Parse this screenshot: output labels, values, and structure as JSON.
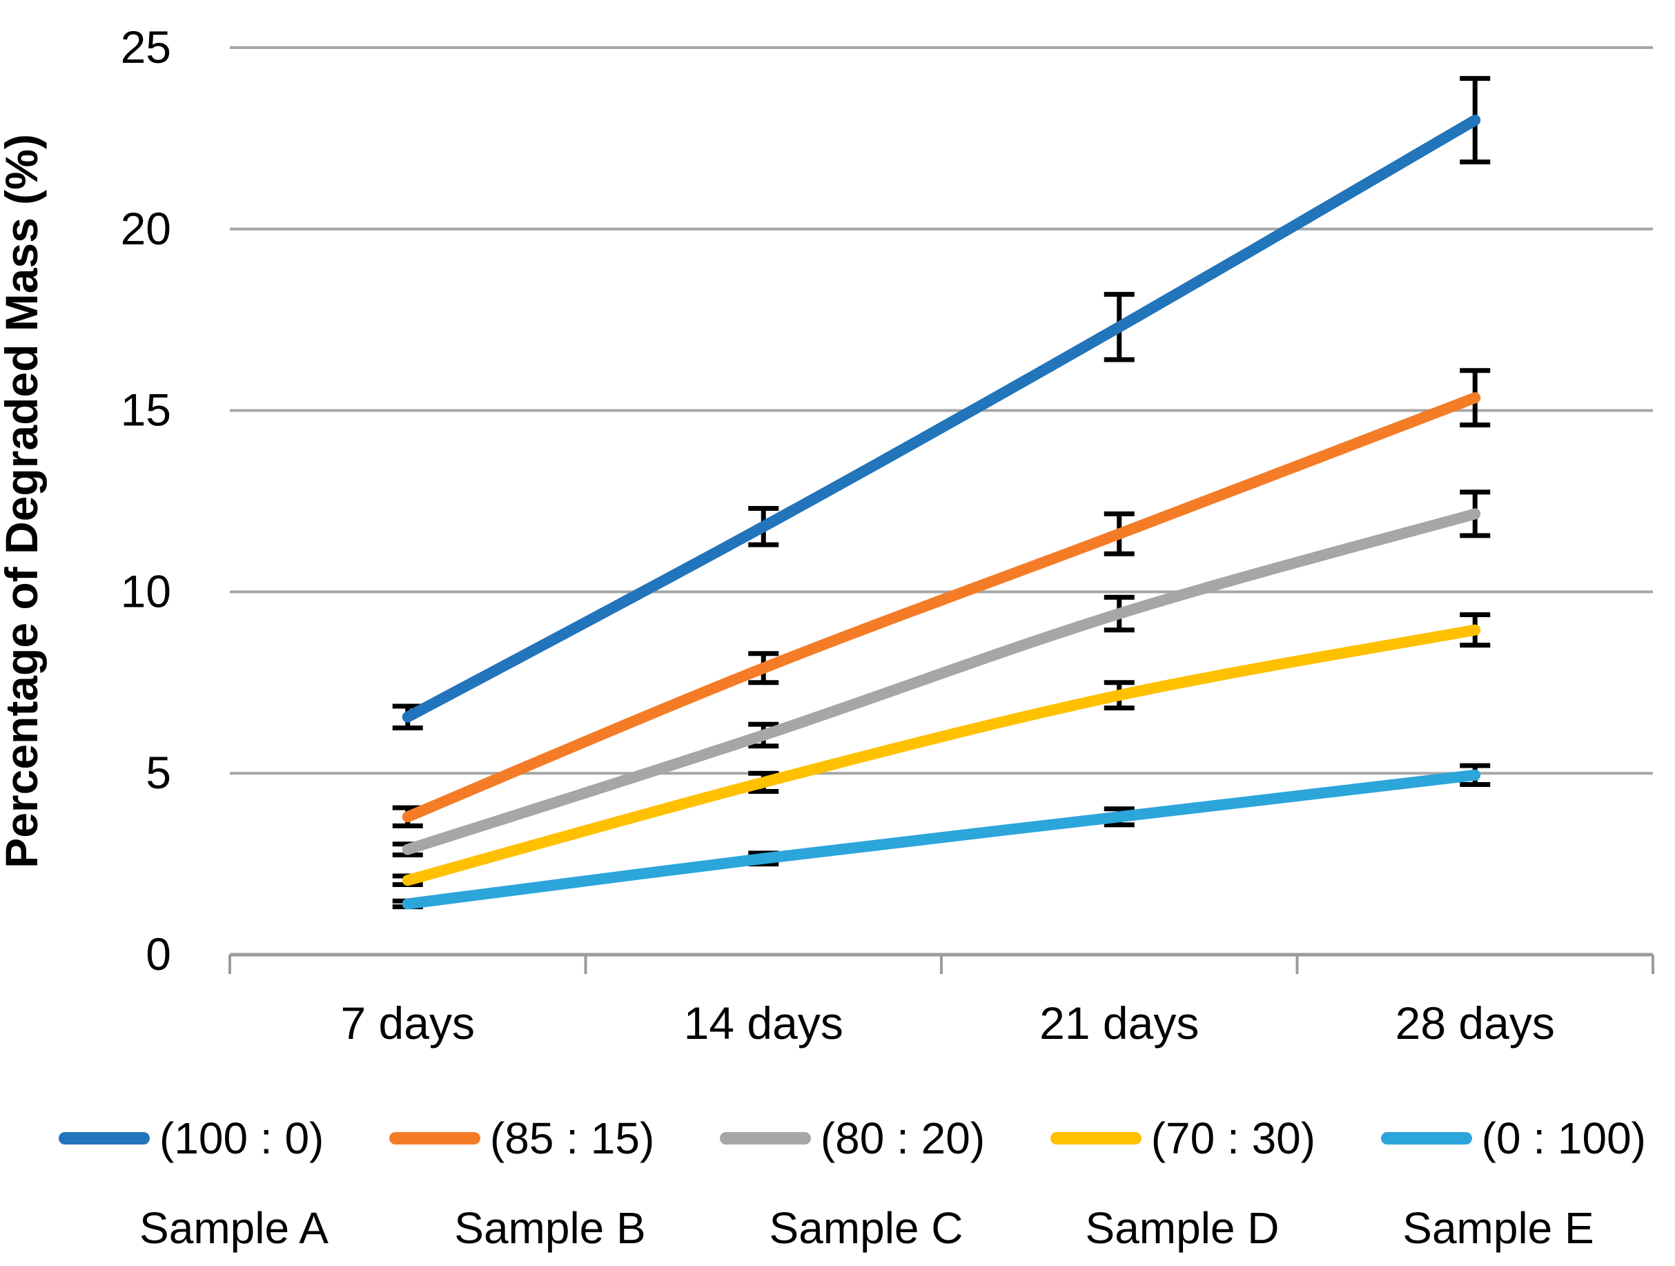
{
  "chart_data": {
    "type": "line",
    "title": "",
    "ylabel": "Percentage of Degraded Mass (%)",
    "categories": [
      "7 days",
      "14 days",
      "21 days",
      "28 days"
    ],
    "series": [
      {
        "name": "(100 : 0)",
        "sample": "Sample A",
        "color": "#2274BB",
        "values": [
          6.55,
          11.8,
          17.3,
          23.0
        ],
        "errors": [
          0.3,
          0.5,
          0.9,
          1.15
        ]
      },
      {
        "name": "(85 : 15)",
        "sample": "Sample B",
        "color": "#F57C27",
        "values": [
          3.8,
          7.9,
          11.6,
          15.35
        ],
        "errors": [
          0.25,
          0.4,
          0.55,
          0.75
        ]
      },
      {
        "name": "(80 : 20)",
        "sample": "Sample C",
        "color": "#A6A6A6",
        "values": [
          2.9,
          6.05,
          9.4,
          12.15
        ],
        "errors": [
          0.15,
          0.3,
          0.45,
          0.6
        ]
      },
      {
        "name": "(70 : 30)",
        "sample": "Sample D",
        "color": "#FFC000",
        "values": [
          2.05,
          4.75,
          7.15,
          8.95
        ],
        "errors": [
          0.12,
          0.25,
          0.35,
          0.42
        ]
      },
      {
        "name": "(0 : 100)",
        "sample": "Sample E",
        "color": "#2CA5DB",
        "values": [
          1.4,
          2.65,
          3.8,
          4.95
        ],
        "errors": [
          0.08,
          0.15,
          0.22,
          0.26
        ]
      }
    ],
    "ylim": [
      0,
      25
    ],
    "yticks": [
      0,
      5,
      10,
      15,
      20,
      25
    ],
    "grid": "horizontal",
    "legend_position": "bottom",
    "error_bars": true,
    "colors": {
      "gridline": "#A6A6A6",
      "axis": "#9B9B9B",
      "error_bar": "#000000",
      "text": "#000000"
    }
  }
}
